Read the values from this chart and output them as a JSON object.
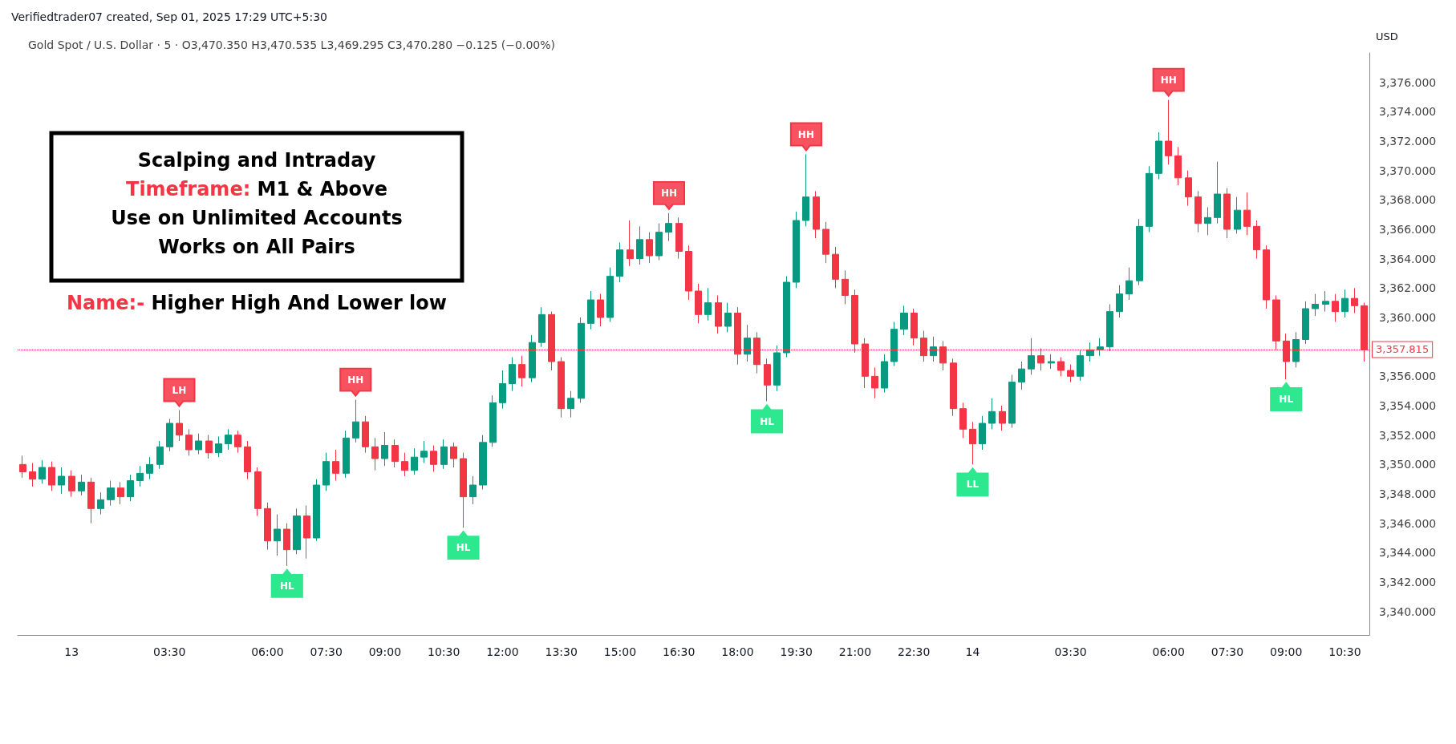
{
  "chart_data": {
    "type": "candlestick",
    "title": "Gold Spot / U.S. Dollar · 5 · O3,470.350 H3,470.535 L3,469.295 C3,470.280 −0.125 (−0.00%)",
    "ylabel": "USD",
    "annotations": [
      "Verifiedtrader07 created, Sep 01, 2025 17:29 UTC+5:30",
      "Scalping and Intraday",
      "Timeframe: M1 & Above",
      "Use on Unlimited Accounts",
      "Works on All Pairs",
      "Name:- Higher High And Lower low",
      {
        "text": "LH",
        "y": 3353.7
      },
      {
        "text": "HL",
        "y": 3343.1
      },
      {
        "text": "HH",
        "y": 3354.4
      },
      {
        "text": "HL",
        "y": 3345.7
      },
      {
        "text": "HH",
        "y": 3367.1
      },
      {
        "text": "HL",
        "y": 3354.3
      },
      {
        "text": "HH",
        "y": 3371.1
      },
      {
        "text": "LL",
        "y": 3350.0
      },
      {
        "text": "HH",
        "y": 3374.8
      },
      {
        "text": "HL",
        "y": 3355.8
      }
    ],
    "categories": [
      null,
      null,
      null,
      null,
      null,
      "13",
      null,
      null,
      null,
      null,
      null,
      null,
      null,
      null,
      null,
      "03:30",
      null,
      null,
      null,
      null,
      null,
      null,
      null,
      null,
      null,
      "06:00",
      null,
      null,
      null,
      null,
      null,
      "07:30",
      null,
      null,
      null,
      null,
      null,
      "09:00",
      null,
      null,
      null,
      null,
      null,
      "10:30",
      null,
      null,
      null,
      null,
      null,
      "12:00",
      null,
      null,
      null,
      null,
      null,
      "13:30",
      null,
      null,
      null,
      null,
      null,
      "15:00",
      null,
      null,
      null,
      null,
      null,
      "16:30",
      null,
      null,
      null,
      null,
      null,
      "18:00",
      null,
      null,
      null,
      null,
      null,
      "19:30",
      null,
      null,
      null,
      null,
      null,
      "21:00",
      null,
      null,
      null,
      null,
      null,
      "22:30",
      null,
      null,
      null,
      null,
      null,
      "14",
      null,
      null,
      null,
      null,
      null,
      null,
      null,
      null,
      null,
      "03:30",
      null,
      null,
      null,
      null,
      null,
      null,
      null,
      null,
      null,
      "06:00",
      null,
      null,
      null,
      null,
      null,
      "07:30",
      null,
      null,
      null,
      null,
      null,
      "09:00",
      null,
      null,
      null,
      null,
      null,
      "10:30",
      null,
      null
    ],
    "ohlc": [
      [
        3350.0,
        3350.6,
        3349.1,
        3349.5
      ],
      [
        3349.5,
        3350.1,
        3348.5,
        3349.0
      ],
      [
        3349.0,
        3350.3,
        3348.7,
        3349.8
      ],
      [
        3349.8,
        3350.2,
        3348.2,
        3348.6
      ],
      [
        3348.6,
        3349.8,
        3348.0,
        3349.2
      ],
      [
        3349.2,
        3349.6,
        3347.8,
        3348.2
      ],
      [
        3348.2,
        3349.3,
        3347.9,
        3348.8
      ],
      [
        3348.8,
        3349.1,
        3346.0,
        3347.0
      ],
      [
        3347.0,
        3348.1,
        3346.6,
        3347.6
      ],
      [
        3347.6,
        3348.9,
        3347.2,
        3348.4
      ],
      [
        3348.4,
        3348.8,
        3347.3,
        3347.8
      ],
      [
        3347.8,
        3349.3,
        3347.5,
        3348.9
      ],
      [
        3348.9,
        3349.9,
        3348.5,
        3349.4
      ],
      [
        3349.4,
        3350.5,
        3349.0,
        3350.0
      ],
      [
        3350.0,
        3351.6,
        3349.7,
        3351.2
      ],
      [
        3351.2,
        3353.1,
        3350.9,
        3352.8
      ],
      [
        3352.8,
        3353.7,
        3351.6,
        3352.0
      ],
      [
        3352.0,
        3352.4,
        3350.6,
        3351.0
      ],
      [
        3351.0,
        3352.1,
        3350.7,
        3351.6
      ],
      [
        3351.6,
        3352.0,
        3350.4,
        3350.8
      ],
      [
        3350.8,
        3351.9,
        3350.5,
        3351.4
      ],
      [
        3351.4,
        3352.4,
        3351.0,
        3352.0
      ],
      [
        3352.0,
        3352.3,
        3350.8,
        3351.2
      ],
      [
        3351.2,
        3351.6,
        3349.0,
        3349.5
      ],
      [
        3349.5,
        3349.8,
        3346.5,
        3347.0
      ],
      [
        3347.0,
        3347.4,
        3344.2,
        3344.8
      ],
      [
        3344.8,
        3346.6,
        3343.8,
        3345.6
      ],
      [
        3345.6,
        3346.0,
        3343.1,
        3344.2
      ],
      [
        3344.2,
        3347.0,
        3343.9,
        3346.5
      ],
      [
        3346.5,
        3347.2,
        3343.6,
        3345.0
      ],
      [
        3345.0,
        3349.0,
        3344.8,
        3348.6
      ],
      [
        3348.6,
        3350.8,
        3348.2,
        3350.2
      ],
      [
        3350.2,
        3351.0,
        3348.9,
        3349.4
      ],
      [
        3349.4,
        3352.3,
        3349.1,
        3351.8
      ],
      [
        3351.8,
        3354.4,
        3351.5,
        3352.9
      ],
      [
        3352.9,
        3353.3,
        3350.8,
        3351.2
      ],
      [
        3351.2,
        3351.8,
        3349.6,
        3350.4
      ],
      [
        3350.4,
        3352.2,
        3349.9,
        3351.3
      ],
      [
        3351.3,
        3351.7,
        3349.8,
        3350.2
      ],
      [
        3350.2,
        3350.8,
        3349.2,
        3349.6
      ],
      [
        3349.6,
        3351.1,
        3349.3,
        3350.5
      ],
      [
        3350.5,
        3351.6,
        3350.1,
        3350.9
      ],
      [
        3350.9,
        3351.3,
        3349.5,
        3350.0
      ],
      [
        3350.0,
        3351.7,
        3349.7,
        3351.2
      ],
      [
        3351.2,
        3351.5,
        3349.8,
        3350.4
      ],
      [
        3350.4,
        3350.8,
        3345.7,
        3347.8
      ],
      [
        3347.8,
        3349.2,
        3347.3,
        3348.6
      ],
      [
        3348.6,
        3352.0,
        3348.3,
        3351.5
      ],
      [
        3351.5,
        3354.7,
        3351.2,
        3354.2
      ],
      [
        3354.2,
        3356.4,
        3353.8,
        3355.5
      ],
      [
        3355.5,
        3357.3,
        3355.0,
        3356.8
      ],
      [
        3356.8,
        3357.4,
        3355.3,
        3355.9
      ],
      [
        3355.9,
        3358.8,
        3355.6,
        3358.3
      ],
      [
        3358.3,
        3360.7,
        3358.0,
        3360.2
      ],
      [
        3360.2,
        3360.4,
        3356.4,
        3357.0
      ],
      [
        3357.0,
        3357.3,
        3353.2,
        3353.8
      ],
      [
        3353.8,
        3355.0,
        3353.2,
        3354.5
      ],
      [
        3354.5,
        3360.0,
        3354.2,
        3359.6
      ],
      [
        3359.6,
        3361.8,
        3359.2,
        3361.2
      ],
      [
        3361.2,
        3361.6,
        3359.4,
        3360.0
      ],
      [
        3360.0,
        3363.4,
        3359.7,
        3362.8
      ],
      [
        3362.8,
        3365.1,
        3362.4,
        3364.6
      ],
      [
        3364.6,
        3366.6,
        3363.5,
        3364.0
      ],
      [
        3364.0,
        3366.2,
        3363.6,
        3365.3
      ],
      [
        3365.3,
        3365.8,
        3363.7,
        3364.2
      ],
      [
        3364.2,
        3366.4,
        3363.9,
        3365.8
      ],
      [
        3365.8,
        3367.1,
        3365.2,
        3366.4
      ],
      [
        3366.4,
        3366.8,
        3364.0,
        3364.5
      ],
      [
        3364.5,
        3364.9,
        3361.2,
        3361.8
      ],
      [
        3361.8,
        3362.3,
        3359.6,
        3360.2
      ],
      [
        3360.2,
        3362.0,
        3359.8,
        3361.0
      ],
      [
        3361.0,
        3361.5,
        3358.9,
        3359.4
      ],
      [
        3359.4,
        3361.0,
        3359.0,
        3360.3
      ],
      [
        3360.3,
        3360.7,
        3356.8,
        3357.5
      ],
      [
        3357.5,
        3359.5,
        3357.0,
        3358.6
      ],
      [
        3358.6,
        3359.0,
        3356.2,
        3356.8
      ],
      [
        3356.8,
        3357.2,
        3354.3,
        3355.4
      ],
      [
        3355.4,
        3358.1,
        3355.0,
        3357.6
      ],
      [
        3357.6,
        3362.8,
        3357.3,
        3362.4
      ],
      [
        3362.4,
        3367.2,
        3362.0,
        3366.6
      ],
      [
        3366.6,
        3371.1,
        3366.2,
        3368.2
      ],
      [
        3368.2,
        3368.6,
        3365.4,
        3366.0
      ],
      [
        3366.0,
        3366.5,
        3363.7,
        3364.3
      ],
      [
        3364.3,
        3364.8,
        3362.0,
        3362.6
      ],
      [
        3362.6,
        3363.2,
        3360.9,
        3361.5
      ],
      [
        3361.5,
        3361.9,
        3357.6,
        3358.2
      ],
      [
        3358.2,
        3358.6,
        3355.2,
        3356.0
      ],
      [
        3356.0,
        3356.6,
        3354.5,
        3355.2
      ],
      [
        3355.2,
        3357.5,
        3354.9,
        3357.0
      ],
      [
        3357.0,
        3359.7,
        3356.7,
        3359.2
      ],
      [
        3359.2,
        3360.8,
        3358.8,
        3360.3
      ],
      [
        3360.3,
        3360.6,
        3358.1,
        3358.6
      ],
      [
        3358.6,
        3359.1,
        3357.0,
        3357.4
      ],
      [
        3357.4,
        3358.7,
        3357.0,
        3358.0
      ],
      [
        3358.0,
        3358.4,
        3356.4,
        3356.9
      ],
      [
        3356.9,
        3357.2,
        3353.3,
        3353.8
      ],
      [
        3353.8,
        3354.2,
        3351.8,
        3352.4
      ],
      [
        3352.4,
        3352.9,
        3350.0,
        3351.4
      ],
      [
        3351.4,
        3353.3,
        3351.0,
        3352.8
      ],
      [
        3352.8,
        3354.5,
        3352.4,
        3353.6
      ],
      [
        3353.6,
        3354.0,
        3352.3,
        3352.8
      ],
      [
        3352.8,
        3356.1,
        3352.5,
        3355.6
      ],
      [
        3355.6,
        3357.0,
        3355.1,
        3356.5
      ],
      [
        3356.5,
        3358.6,
        3356.1,
        3357.4
      ],
      [
        3357.4,
        3357.9,
        3356.4,
        3356.9
      ],
      [
        3356.9,
        3357.5,
        3356.5,
        3357.0
      ],
      [
        3357.0,
        3357.3,
        3356.0,
        3356.4
      ],
      [
        3356.4,
        3356.8,
        3355.6,
        3356.0
      ],
      [
        3356.0,
        3357.8,
        3355.7,
        3357.4
      ],
      [
        3357.4,
        3358.3,
        3357.0,
        3357.8
      ],
      [
        3357.8,
        3358.6,
        3357.4,
        3358.0
      ],
      [
        3358.0,
        3360.9,
        3357.7,
        3360.4
      ],
      [
        3360.4,
        3362.2,
        3360.0,
        3361.6
      ],
      [
        3361.6,
        3363.4,
        3361.2,
        3362.5
      ],
      [
        3362.5,
        3366.7,
        3362.2,
        3366.2
      ],
      [
        3366.2,
        3370.3,
        3365.8,
        3369.8
      ],
      [
        3369.8,
        3372.6,
        3369.4,
        3372.0
      ],
      [
        3372.0,
        3374.8,
        3370.4,
        3371.0
      ],
      [
        3371.0,
        3371.6,
        3369.0,
        3369.5
      ],
      [
        3369.5,
        3370.0,
        3367.6,
        3368.2
      ],
      [
        3368.2,
        3368.6,
        3365.8,
        3366.4
      ],
      [
        3366.4,
        3367.5,
        3365.6,
        3366.8
      ],
      [
        3366.8,
        3370.6,
        3366.4,
        3368.4
      ],
      [
        3368.4,
        3368.8,
        3365.4,
        3366.0
      ],
      [
        3366.0,
        3368.2,
        3365.7,
        3367.3
      ],
      [
        3367.3,
        3368.5,
        3365.6,
        3366.2
      ],
      [
        3366.2,
        3366.6,
        3364.0,
        3364.6
      ],
      [
        3364.6,
        3364.9,
        3360.6,
        3361.2
      ],
      [
        3361.2,
        3361.5,
        3357.8,
        3358.4
      ],
      [
        3358.4,
        3358.9,
        3355.8,
        3357.0
      ],
      [
        3357.0,
        3359.0,
        3356.6,
        3358.5
      ],
      [
        3358.5,
        3361.1,
        3358.2,
        3360.6
      ],
      [
        3360.6,
        3361.6,
        3360.1,
        3360.9
      ],
      [
        3360.9,
        3361.8,
        3360.4,
        3361.1
      ],
      [
        3361.1,
        3361.6,
        3359.7,
        3360.4
      ],
      [
        3360.4,
        3361.9,
        3360.0,
        3361.3
      ],
      [
        3361.3,
        3362.0,
        3360.3,
        3360.8
      ],
      [
        3360.8,
        3361.0,
        3357.0,
        3357.8
      ]
    ],
    "ylim": [
      3338.4,
      3378
    ],
    "yticks": [
      {
        "value": 3340,
        "label": "3,340.000"
      },
      {
        "value": 3342,
        "label": "3,342.000"
      },
      {
        "value": 3344,
        "label": "3,344.000"
      },
      {
        "value": 3346,
        "label": "3,346.000"
      },
      {
        "value": 3348,
        "label": "3,348.000"
      },
      {
        "value": 3350,
        "label": "3,350.000"
      },
      {
        "value": 3352,
        "label": "3,352.000"
      },
      {
        "value": 3354,
        "label": "3,354.000"
      },
      {
        "value": 3356,
        "label": "3,356.000"
      },
      {
        "value": 3360,
        "label": "3,360.000"
      },
      {
        "value": 3362,
        "label": "3,362.000"
      },
      {
        "value": 3364,
        "label": "3,364.000"
      },
      {
        "value": 3366,
        "label": "3,366.000"
      },
      {
        "value": 3368,
        "label": "3,368.000"
      },
      {
        "value": 3370,
        "label": "3,370.000"
      },
      {
        "value": 3372,
        "label": "3,372.000"
      },
      {
        "value": 3374,
        "label": "3,374.000"
      },
      {
        "value": 3376,
        "label": "3,376.000"
      }
    ],
    "ref_lines": [
      {
        "axis": "y",
        "value": 3357.815,
        "label": "3,357.815",
        "color": "#f23645",
        "line_style": "dotted"
      }
    ],
    "grid": false
  }
}
